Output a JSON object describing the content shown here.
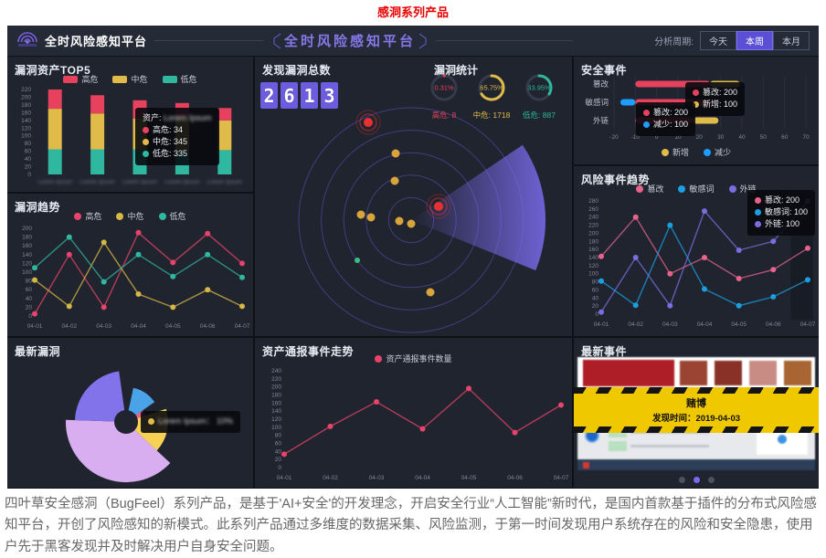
{
  "page_title": "感洞系列产品",
  "header": {
    "logo_text": "全时风险感知平台",
    "center_title": "全时风险感知平台",
    "period_label": "分析周期:",
    "period_options": [
      "今天",
      "本周",
      "本月"
    ],
    "period_selected": "本周"
  },
  "panels": {
    "latest_event": {
      "title": "最新事件",
      "event_name": "赌博",
      "time_text": "发现时间：2019-04-03"
    }
  },
  "chart_data": [
    {
      "id": "top5",
      "type": "bar",
      "stacked": true,
      "title": "漏洞资产TOP5",
      "categories": [
        "Lorem Ipsum",
        "Lorem Ipsum",
        "Lorem Ipsum",
        "Lorem Ipsum",
        "Lorem Ipsum"
      ],
      "series": [
        {
          "name": "高危",
          "color": "#e8415e",
          "values": [
            50,
            47,
            47,
            40,
            32
          ]
        },
        {
          "name": "中危",
          "color": "#e0bb49",
          "values": [
            105,
            93,
            80,
            85,
            77
          ]
        },
        {
          "name": "低危",
          "color": "#2fb7a0",
          "values": [
            65,
            65,
            65,
            60,
            63
          ]
        }
      ],
      "ylim": [
        0,
        220
      ],
      "ystep": 20,
      "tooltip": {
        "label": "资产:",
        "name": "Lorem Ipsum",
        "rows": [
          {
            "name": "高危",
            "value": "34",
            "color": "#e8415e"
          },
          {
            "name": "中危",
            "value": "345",
            "color": "#e0bb49"
          },
          {
            "name": "低危",
            "value": "335",
            "color": "#2fb7a0"
          }
        ]
      }
    },
    {
      "id": "vulnTrend",
      "type": "line",
      "title": "漏洞趋势",
      "x": [
        "04-01",
        "04-02",
        "04-03",
        "04-04",
        "04-05",
        "04-06",
        "04-07"
      ],
      "ylim": [
        0,
        200
      ],
      "ystep": 20,
      "series": [
        {
          "name": "高危",
          "color": "#e8436a",
          "values": [
            5,
            140,
            20,
            190,
            122,
            188,
            120
          ]
        },
        {
          "name": "中危",
          "color": "#d8b844",
          "values": [
            82,
            22,
            168,
            50,
            20,
            60,
            22
          ]
        },
        {
          "name": "低危",
          "color": "#2fb7a0",
          "values": [
            110,
            180,
            78,
            140,
            90,
            140,
            88
          ]
        }
      ]
    },
    {
      "id": "rose",
      "type": "pie",
      "title": "最新漏洞",
      "slices": [
        {
          "color": "#4aa3e8",
          "a0": 12,
          "a1": 55,
          "r": 38
        },
        {
          "color": "#f0608a",
          "a0": 55,
          "a1": 72,
          "r": 22
        },
        {
          "color": "#f7d154",
          "a0": 72,
          "a1": 133,
          "r": 46
        },
        {
          "color": "#d9aef0",
          "a0": 133,
          "a1": 272,
          "r": 66
        },
        {
          "color": "#8273ea",
          "a0": 272,
          "a1": 352,
          "r": 56
        }
      ],
      "tooltip": {
        "name": "Lorem Ipsum",
        "value": "10%",
        "color": "#e0bb49"
      }
    },
    {
      "id": "counter",
      "type": "counter",
      "title": "发现漏洞总数",
      "value": "2613"
    },
    {
      "id": "gauges",
      "type": "gauge",
      "title": "漏洞统计",
      "items": [
        {
          "text": "0.31%",
          "pct": 0.31,
          "label": "高危",
          "value": "8",
          "color": "#e8415e"
        },
        {
          "text": "65.75%",
          "pct": 65.75,
          "label": "中危",
          "value": "1718",
          "color": "#e0bb49"
        },
        {
          "text": "33.95%",
          "pct": 33.95,
          "label": "低危",
          "value": "887",
          "color": "#2fb7a0"
        }
      ]
    },
    {
      "id": "secEvents",
      "type": "bar",
      "title": "安全事件",
      "categories": [
        "篡改",
        "敏感词",
        "外链"
      ],
      "xlim": [
        -20,
        70
      ],
      "xstep": 10,
      "rows": [
        {
          "segs": [
            {
              "f": -10,
              "t": 25,
              "c": "#e8415e"
            },
            {
              "f": 25,
              "t": 39,
              "c": "#e0bb49"
            }
          ]
        },
        {
          "segs": [
            {
              "f": -17,
              "t": -10,
              "c": "#1e9fff"
            },
            {
              "f": -10,
              "t": 25,
              "c": "#e8415e"
            }
          ]
        },
        {
          "segs": [
            {
              "f": -10,
              "t": 17,
              "c": "#e8415e"
            },
            {
              "f": 17,
              "t": 29,
              "c": "#e0bb49"
            }
          ]
        }
      ],
      "legend": [
        {
          "name": "新增",
          "color": "#e0bb49"
        },
        {
          "name": "减少",
          "color": "#1e9fff"
        }
      ],
      "tooltips": [
        {
          "rows": [
            {
              "name": "篡改",
              "value": "200",
              "color": "#e8415e"
            },
            {
              "name": "新增",
              "value": "100",
              "color": "#e0bb49"
            }
          ]
        },
        {
          "rows": [
            {
              "name": "篡改",
              "value": "200",
              "color": "#e8415e"
            },
            {
              "name": "减少",
              "value": "100",
              "color": "#1e9fff"
            }
          ]
        }
      ]
    },
    {
      "id": "riskTrend",
      "type": "line",
      "title": "风险事件趋势",
      "x": [
        "04-01",
        "04-02",
        "04-03",
        "04-04",
        "04-05",
        "04-06",
        "04-07"
      ],
      "ylim": [
        0,
        280
      ],
      "ystep": 20,
      "series": [
        {
          "name": "篡改",
          "color": "#e8638c",
          "values": [
            143,
            240,
            100,
            140,
            88,
            110,
            163
          ]
        },
        {
          "name": "敏感词",
          "color": "#1b9fe0",
          "values": [
            82,
            22,
            220,
            62,
            21,
            43,
            85
          ]
        },
        {
          "name": "外链",
          "color": "#7d6ce0",
          "values": [
            5,
            140,
            21,
            255,
            158,
            180,
            280
          ]
        }
      ],
      "tooltip": {
        "rows": [
          {
            "name": "篡改",
            "value": "200",
            "color": "#e8638c"
          },
          {
            "name": "敏感词",
            "value": "100",
            "color": "#1b9fe0"
          },
          {
            "name": "外链",
            "value": "100",
            "color": "#7d6ce0"
          }
        ]
      }
    },
    {
      "id": "assetTrend",
      "type": "line",
      "title": "资产通报事件走势",
      "x": [
        "04-01",
        "04-02",
        "04-03",
        "04-04",
        "04-05",
        "04-06",
        "04-07"
      ],
      "ylim": [
        0,
        240
      ],
      "ystep": 20,
      "series": [
        {
          "name": "资产通报事件数量",
          "color": "#e8436a",
          "values": [
            33,
            102,
            163,
            96,
            196,
            87,
            155
          ]
        }
      ]
    },
    {
      "id": "radar",
      "type": "scatter",
      "title": "",
      "center": [
        171,
        179
      ],
      "rings": 5,
      "ring_step": 24.6,
      "sweep": {
        "a0": 56,
        "a1": 112,
        "r": 147
      },
      "dots": [
        {
          "x": 124,
          "y": 72,
          "color": "#e8312f",
          "ripple": true
        },
        {
          "x": 201,
          "y": 164,
          "color": "#e8312f",
          "ripple": true
        },
        {
          "x": 154,
          "y": 106,
          "color": "#d9a43c"
        },
        {
          "x": 153,
          "y": 136,
          "color": "#d9a43c"
        },
        {
          "x": 116,
          "y": 173,
          "color": "#d9a43c"
        },
        {
          "x": 127,
          "y": 176,
          "color": "#d9a43c"
        },
        {
          "x": 158,
          "y": 180,
          "color": "#d9a43c"
        },
        {
          "x": 171,
          "y": 183,
          "color": "#d9a43c"
        },
        {
          "x": 192,
          "y": 258,
          "color": "#d9a43c"
        },
        {
          "x": 112,
          "y": 223,
          "color": "#3dbd7d",
          "r": 3
        }
      ]
    }
  ],
  "footer": {
    "text": "四叶草安全感洞（BugFeel）系列产品，是基于'AI+安全'的开发理念，开启安全行业“人工智能”新时代，是国内首款基于插件的分布式风险感知平台，开创了风险感知的新模式。此系列产品通过多维度的数据采集、风险监测，于第一时间发现用户系统存在的风险和安全隐患，使用户先于黑客发现并及时解决用户自身安全问题。"
  }
}
